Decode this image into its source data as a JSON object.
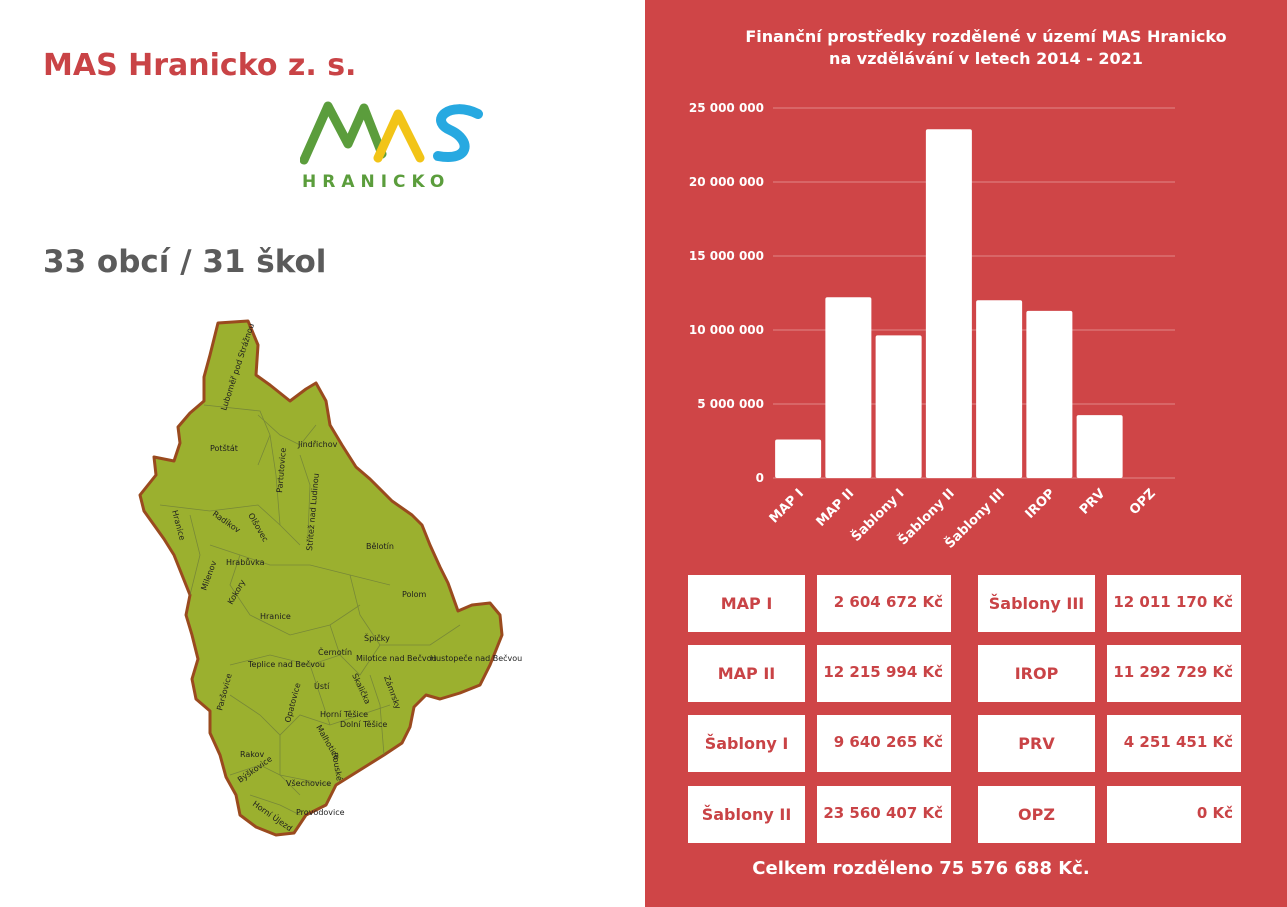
{
  "org_title": "MAS Hranicko z. s.",
  "logo": {
    "word": "HRANICKO",
    "letters": "MAS"
  },
  "subtitle": "33 obcí / 31 škol",
  "map": {
    "municipalities": [
      "Luboměř pod Strážnou",
      "Potštát",
      "Jindřichov",
      "Partutovice",
      "Střítež nad Ludinou",
      "Olšovec",
      "Radíkov",
      "Hranice",
      "Hrabůvka",
      "Milenov",
      "Kokory",
      "Bělotín",
      "Polom",
      "Špičky",
      "Černotín",
      "Milotice nad Bečvou",
      "Hustopeče nad Bečvou",
      "Teplice nad Bečvou",
      "Ústí",
      "Skalička",
      "Zámrsky",
      "Horní Těšice",
      "Dolní Těšice",
      "Paršovice",
      "Opatovice",
      "Malhotice",
      "Rakov",
      "Býškovice",
      "Všechovice",
      "Rouské",
      "Horní Újezd",
      "Provodovice"
    ]
  },
  "chart_data": {
    "type": "bar",
    "title": "Finanční prostředky rozdělené v území  MAS Hranicko na vzdělávání v letech 2014 - 2021",
    "title_lines": [
      "Finanční prostředky rozdělené v území  MAS Hranicko",
      "na vzdělávání v letech 2014 - 2021"
    ],
    "categories": [
      "MAP I",
      "MAP II",
      "Šablony I",
      "Šablony II",
      "Šablony III",
      "IROP",
      "PRV",
      "OPZ"
    ],
    "values": [
      2604672,
      12215994,
      9640265,
      23560407,
      12011170,
      11292729,
      4251451,
      0
    ],
    "ylim": [
      0,
      25000000
    ],
    "yticks": [
      0,
      5000000,
      10000000,
      15000000,
      20000000,
      25000000
    ],
    "ytick_labels": [
      "0",
      "5 000 000",
      "10 000 000",
      "15 000 000",
      "20 000 000",
      "25 000 000"
    ],
    "grid": true,
    "bar_color": "#ffffff",
    "background": "#cf4547"
  },
  "table": {
    "left": [
      {
        "label": "MAP I",
        "value": "2 604 672 Kč"
      },
      {
        "label": "MAP II",
        "value": "12 215 994 Kč"
      },
      {
        "label": "Šablony I",
        "value": "9 640 265 Kč"
      },
      {
        "label": "Šablony II",
        "value": "23 560 407 Kč"
      }
    ],
    "right": [
      {
        "label": "Šablony III",
        "value": "12 011 170 Kč"
      },
      {
        "label": "IROP",
        "value": "11 292 729 Kč"
      },
      {
        "label": "PRV",
        "value": "4 251 451 Kč"
      },
      {
        "label": "OPZ",
        "value": "0 Kč"
      }
    ]
  },
  "total": "Celkem rozděleno 75 576 688 Kč.",
  "colors": {
    "accent": "#cf4547",
    "title_red": "#c94346",
    "map_fill": "#9bb02f",
    "map_border": "#9a4a1e",
    "logo_green": "#5b9d3c",
    "logo_yellow": "#f2c417",
    "logo_blue": "#27a9e1"
  }
}
